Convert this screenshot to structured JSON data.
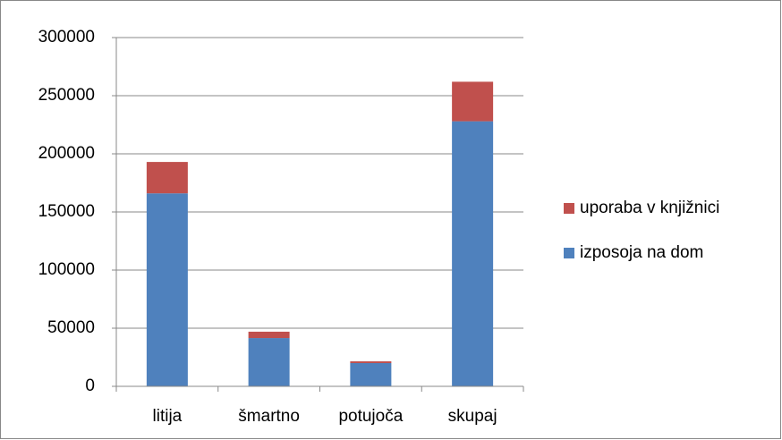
{
  "chart_data": {
    "type": "stacked_bar",
    "categories": [
      "litija",
      "šmartno",
      "potujoča",
      "skupaj"
    ],
    "series": [
      {
        "name": "izposoja na dom",
        "color": "#4f81bd",
        "values": [
          166000,
          41500,
          20000,
          228000
        ]
      },
      {
        "name": "uporaba v knjižnici",
        "color": "#c0504d",
        "values": [
          27000,
          5500,
          1500,
          34000
        ]
      }
    ],
    "ylim": [
      0,
      300000
    ],
    "yticks": [
      0,
      50000,
      100000,
      150000,
      200000,
      250000,
      300000
    ],
    "grid": true,
    "legend": "right"
  }
}
